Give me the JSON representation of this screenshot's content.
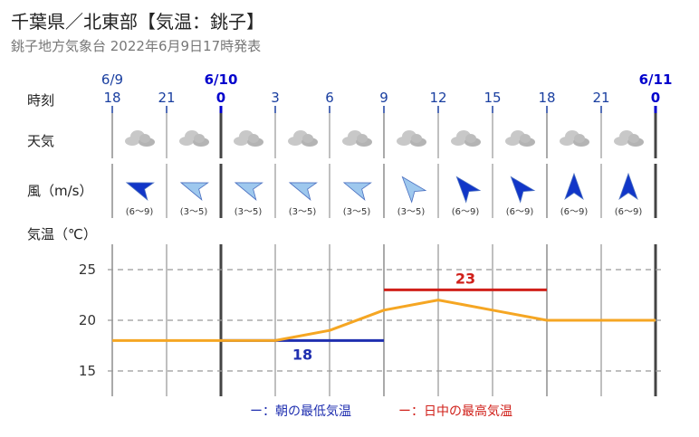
{
  "header": {
    "title": "千葉県／北東部【気温：銚子】",
    "subtitle": "銚子地方気象台 2022年6月9日17時発表"
  },
  "rows": {
    "time": "時刻",
    "weather": "天気",
    "wind": "風（m/s）",
    "temp": "気温（℃）"
  },
  "time_axis": {
    "dates": [
      {
        "label": "6/9",
        "index": 0,
        "bold": false
      },
      {
        "label": "6/10",
        "index": 2,
        "bold": true
      },
      {
        "label": "6/11",
        "index": 10,
        "bold": true
      }
    ],
    "hours": [
      {
        "label": "18",
        "bold": false
      },
      {
        "label": "21",
        "bold": false
      },
      {
        "label": "0",
        "bold": true
      },
      {
        "label": "3",
        "bold": false
      },
      {
        "label": "6",
        "bold": false
      },
      {
        "label": "9",
        "bold": false
      },
      {
        "label": "12",
        "bold": false
      },
      {
        "label": "15",
        "bold": false
      },
      {
        "label": "18",
        "bold": false
      },
      {
        "label": "21",
        "bold": false
      },
      {
        "label": "0",
        "bold": true
      }
    ]
  },
  "weather": [
    "cloudy-icon",
    "cloudy-icon",
    "cloudy-icon",
    "cloudy-icon",
    "cloudy-icon",
    "cloudy-icon",
    "cloudy-icon",
    "cloudy-icon",
    "cloudy-icon",
    "cloudy-icon"
  ],
  "wind": [
    {
      "speed": "(6～9)",
      "direction": "ENE",
      "strength": "strong"
    },
    {
      "speed": "(3～5)",
      "direction": "ENE",
      "strength": "light"
    },
    {
      "speed": "(3～5)",
      "direction": "ENE",
      "strength": "light"
    },
    {
      "speed": "(3～5)",
      "direction": "ENE",
      "strength": "light"
    },
    {
      "speed": "(3～5)",
      "direction": "ENE",
      "strength": "light"
    },
    {
      "speed": "(3～5)",
      "direction": "SE",
      "strength": "light"
    },
    {
      "speed": "(6～9)",
      "direction": "SE",
      "strength": "strong"
    },
    {
      "speed": "(6～9)",
      "direction": "SE",
      "strength": "strong"
    },
    {
      "speed": "(6～9)",
      "direction": "S",
      "strength": "strong"
    },
    {
      "speed": "(6～9)",
      "direction": "S",
      "strength": "strong"
    }
  ],
  "colors": {
    "temperature_line": "#f5a623",
    "min_temp": "#1f2fb0",
    "max_temp": "#d0201a",
    "wind_strong": "#1136c8",
    "wind_light": "#9ec8ee",
    "cloud": "#c8c8c8"
  },
  "chart_data": {
    "type": "line",
    "x": [
      "6/9 18",
      "6/9 21",
      "6/10 0",
      "6/10 3",
      "6/10 6",
      "6/10 9",
      "6/10 12",
      "6/10 15",
      "6/10 18",
      "6/10 21",
      "6/11 0"
    ],
    "ylabel": "気温（℃）",
    "ylim": [
      12.5,
      27.5
    ],
    "yticks": [
      15,
      20,
      25
    ],
    "grid": true,
    "series": [
      {
        "values": [
          18,
          18,
          18,
          18,
          19,
          21,
          22,
          21,
          20,
          20,
          20
        ]
      }
    ],
    "min_temp": {
      "value": 18,
      "label": "18",
      "from": "6/10 0",
      "to": "6/10 9"
    },
    "max_temp": {
      "value": 23,
      "label": "23",
      "from": "6/10 9",
      "to": "6/10 18"
    },
    "legend": [
      {
        "label": "ー：朝の最低気温",
        "key": "min_temp"
      },
      {
        "label": "ー：日中の最高気温",
        "key": "max_temp"
      }
    ]
  }
}
